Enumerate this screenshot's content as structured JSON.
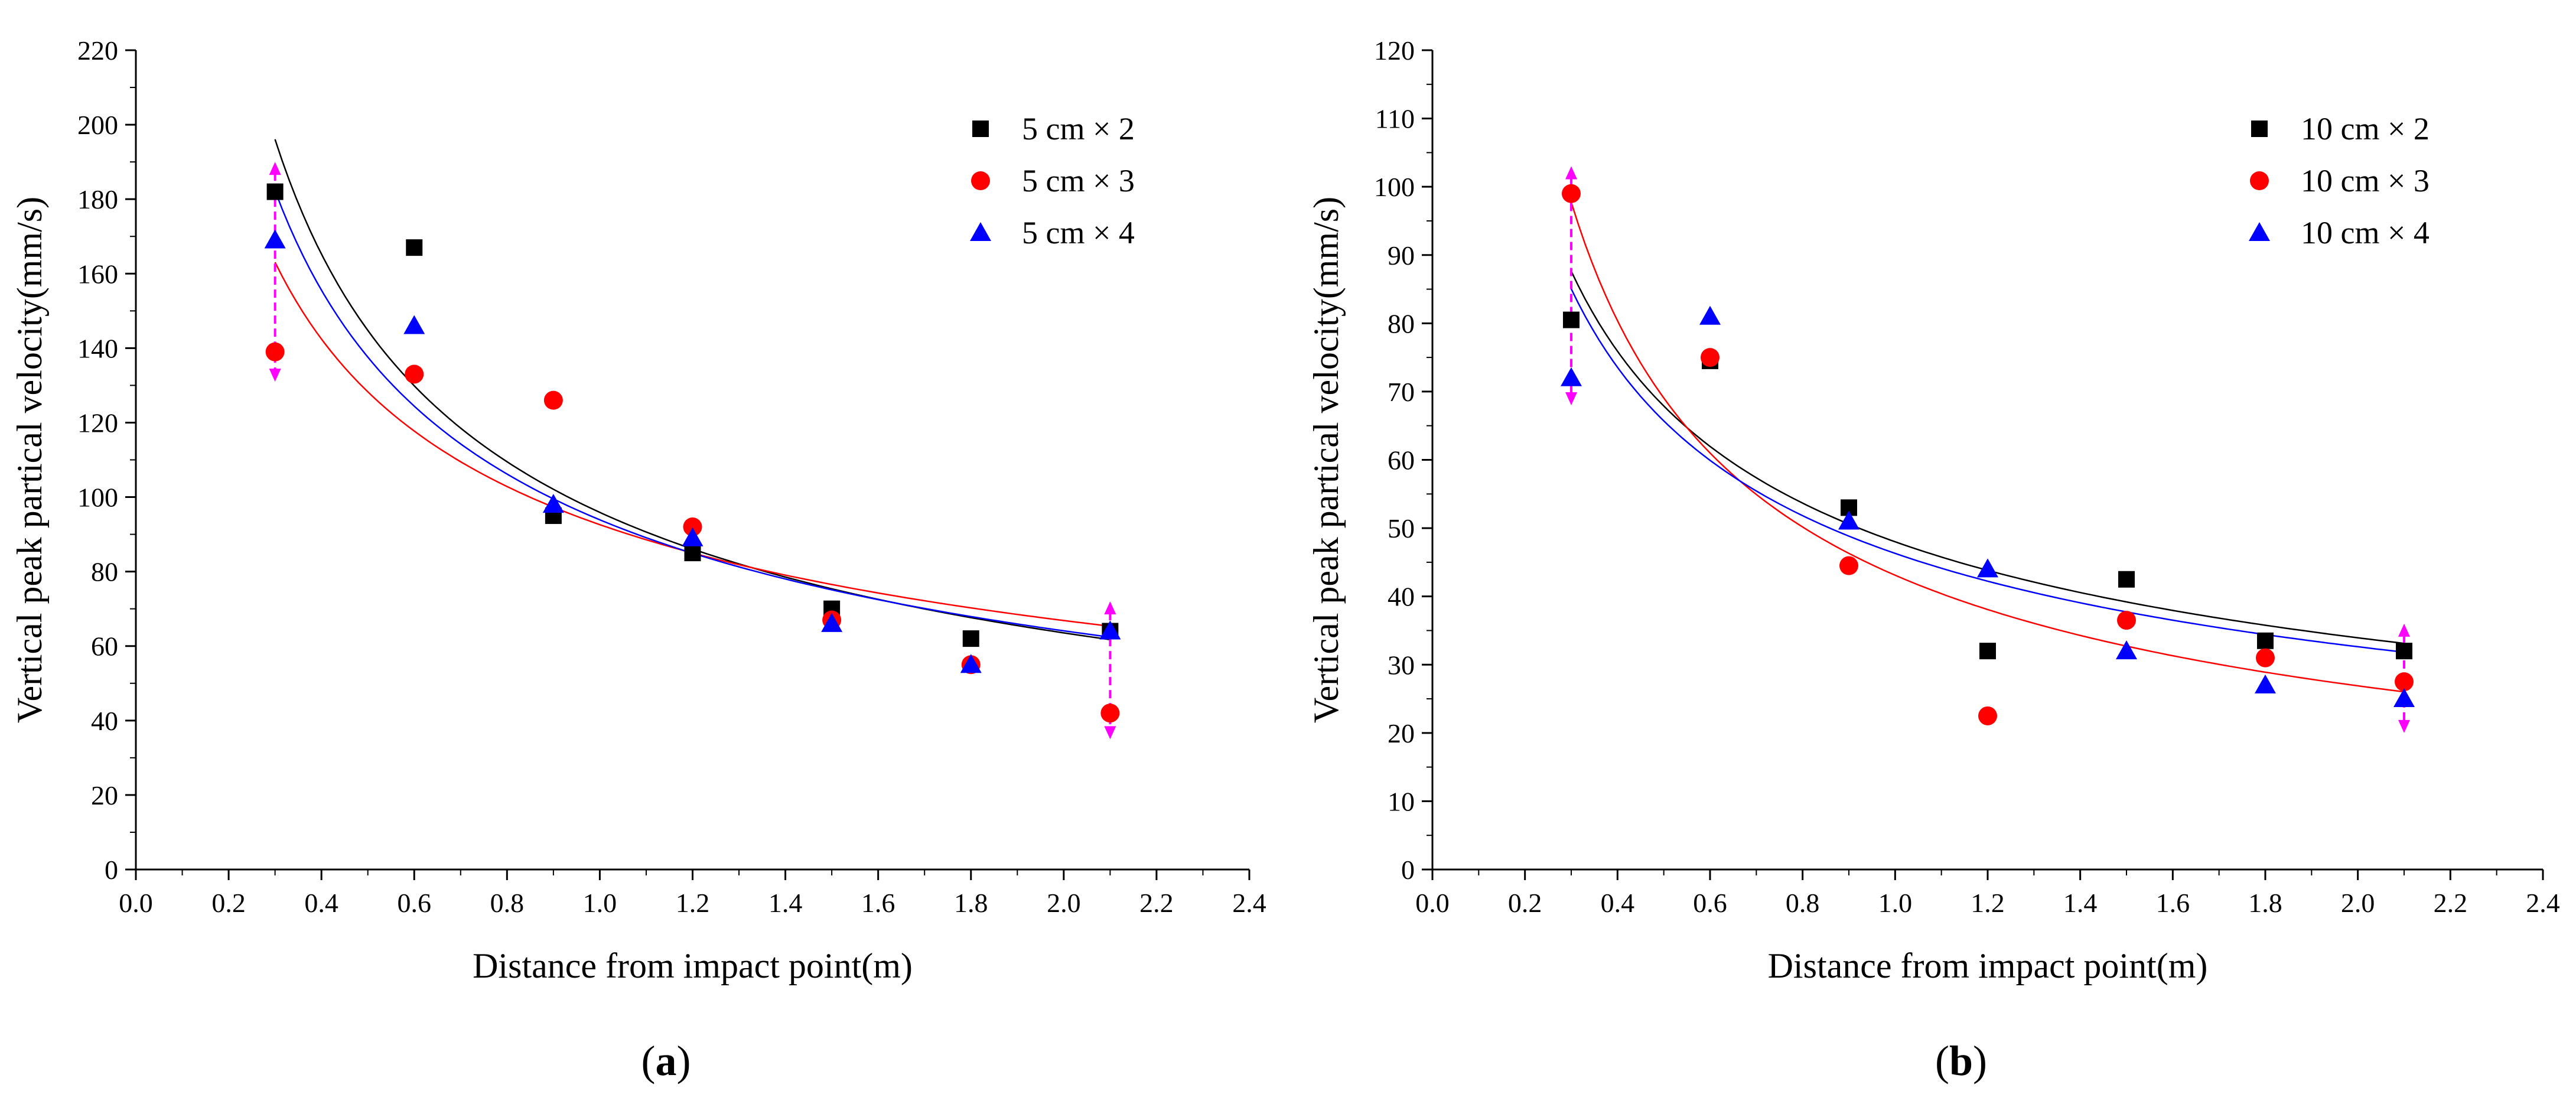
{
  "chart_data": [
    {
      "type": "scatter",
      "panel_label": "(a)",
      "panel_letter": "a",
      "xlabel": "Distance from impact point(m)",
      "ylabel": "Vertical peak partical velocity(mm/s)",
      "xlim": [
        0.0,
        2.4
      ],
      "ylim": [
        0,
        220
      ],
      "xticks": [
        "0.0",
        "0.2",
        "0.4",
        "0.6",
        "0.8",
        "1.0",
        "1.2",
        "1.4",
        "1.6",
        "1.8",
        "2.0",
        "2.2",
        "2.4"
      ],
      "yticks": [
        "0",
        "20",
        "40",
        "60",
        "80",
        "100",
        "120",
        "140",
        "160",
        "180",
        "200",
        "220"
      ],
      "legend_position": "top-right",
      "series": [
        {
          "name": "5 cm × 2",
          "marker": "square",
          "color": "#000000",
          "x": [
            0.3,
            0.6,
            0.9,
            1.2,
            1.5,
            1.8,
            2.1
          ],
          "y": [
            182,
            167,
            95,
            85,
            70,
            62,
            64
          ],
          "fit": {
            "model": "power",
            "a": 95.9,
            "b": -0.594
          }
        },
        {
          "name": "5 cm × 3",
          "marker": "circle",
          "color": "#ff0000",
          "x": [
            0.3,
            0.6,
            0.9,
            1.2,
            1.5,
            1.8,
            2.1
          ],
          "y": [
            139,
            133,
            126,
            92,
            67,
            55,
            42
          ],
          "fit": {
            "model": "power",
            "a": 92.6,
            "b": -0.47
          }
        },
        {
          "name": "5 cm × 4",
          "marker": "triangle",
          "color": "#0000ff",
          "x": [
            0.3,
            0.6,
            0.9,
            1.2,
            1.5,
            1.8,
            2.1
          ],
          "y": [
            169,
            146,
            98,
            89,
            66,
            55,
            64
          ],
          "fit": {
            "model": "power",
            "a": 93.9,
            "b": -0.551
          }
        }
      ],
      "error_arrows": [
        {
          "x": 0.3,
          "y_min": 131,
          "y_max": 190
        },
        {
          "x": 2.1,
          "y_min": 35,
          "y_max": 72
        }
      ]
    },
    {
      "type": "scatter",
      "panel_label": "(b)",
      "panel_letter": "b",
      "xlabel": "Distance from impact point(m)",
      "ylabel": "Vertical peak partical velocity(mm/s)",
      "xlim": [
        0.0,
        2.4
      ],
      "ylim": [
        0,
        120
      ],
      "xticks": [
        "0.0",
        "0.2",
        "0.4",
        "0.6",
        "0.8",
        "1.0",
        "1.2",
        "1.4",
        "1.6",
        "1.8",
        "2.0",
        "2.2",
        "2.4"
      ],
      "yticks": [
        "0",
        "10",
        "20",
        "30",
        "40",
        "50",
        "60",
        "70",
        "80",
        "90",
        "100",
        "110",
        "120"
      ],
      "legend_position": "top-right",
      "series": [
        {
          "name": "10 cm × 2",
          "marker": "square",
          "color": "#000000",
          "x": [
            0.3,
            0.6,
            0.9,
            1.2,
            1.5,
            1.8,
            2.1
          ],
          "y": [
            80.5,
            74.5,
            53,
            32,
            42.5,
            33.5,
            32
          ],
          "fit": {
            "model": "power",
            "a": 48.0,
            "b": -0.5
          }
        },
        {
          "name": "10 cm × 3",
          "marker": "circle",
          "color": "#ff0000",
          "x": [
            0.3,
            0.6,
            0.9,
            1.2,
            1.5,
            1.8,
            2.1
          ],
          "y": [
            99,
            75,
            44.5,
            22.5,
            36.5,
            31,
            27.5
          ],
          "fit": {
            "model": "power",
            "a": 43.1,
            "b": -0.68
          }
        },
        {
          "name": "10 cm × 4",
          "marker": "triangle",
          "color": "#0000ff",
          "x": [
            0.3,
            0.6,
            0.9,
            1.2,
            1.5,
            1.8,
            2.1
          ],
          "y": [
            72,
            81,
            51,
            44,
            32,
            27,
            25
          ],
          "fit": {
            "model": "power",
            "a": 46.3,
            "b": -0.505
          }
        }
      ],
      "error_arrows": [
        {
          "x": 0.3,
          "y_min": 68,
          "y_max": 103
        },
        {
          "x": 2.1,
          "y_min": 20,
          "y_max": 36
        }
      ]
    }
  ],
  "colors": {
    "axis": "#000000",
    "arrow": "#ff00ff"
  }
}
